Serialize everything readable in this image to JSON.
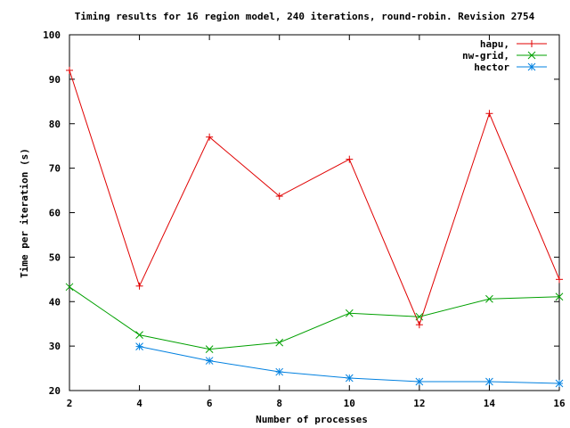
{
  "chart_data": {
    "type": "line",
    "title": "Timing results for 16 region model, 240 iterations, round-robin. Revision 2754",
    "xlabel": "Number of processes",
    "ylabel": "Time per iteration (s)",
    "xlim": [
      2,
      16
    ],
    "ylim": [
      20,
      100
    ],
    "xticks": [
      2,
      4,
      6,
      8,
      10,
      12,
      14,
      16
    ],
    "yticks": [
      20,
      30,
      40,
      50,
      60,
      70,
      80,
      90,
      100
    ],
    "grid": false,
    "legend_position": "top-right",
    "series": [
      {
        "name": "hapu,",
        "color": "#e00000",
        "marker": "plus",
        "x": [
          2,
          4,
          6,
          8,
          10,
          12,
          14,
          16
        ],
        "y": [
          92,
          43.5,
          77,
          63.7,
          72,
          34.8,
          82.3,
          45
        ]
      },
      {
        "name": "nw-grid,",
        "color": "#00a000",
        "marker": "cross",
        "x": [
          2,
          4,
          6,
          8,
          10,
          12,
          14,
          16
        ],
        "y": [
          43.3,
          32.5,
          29.3,
          30.8,
          37.4,
          36.6,
          40.6,
          41.1
        ]
      },
      {
        "name": "hector",
        "color": "#0080e0",
        "marker": "star",
        "x": [
          4,
          6,
          8,
          10,
          12,
          14,
          16
        ],
        "y": [
          29.9,
          26.7,
          24.2,
          22.8,
          22,
          22,
          21.6
        ]
      }
    ]
  }
}
